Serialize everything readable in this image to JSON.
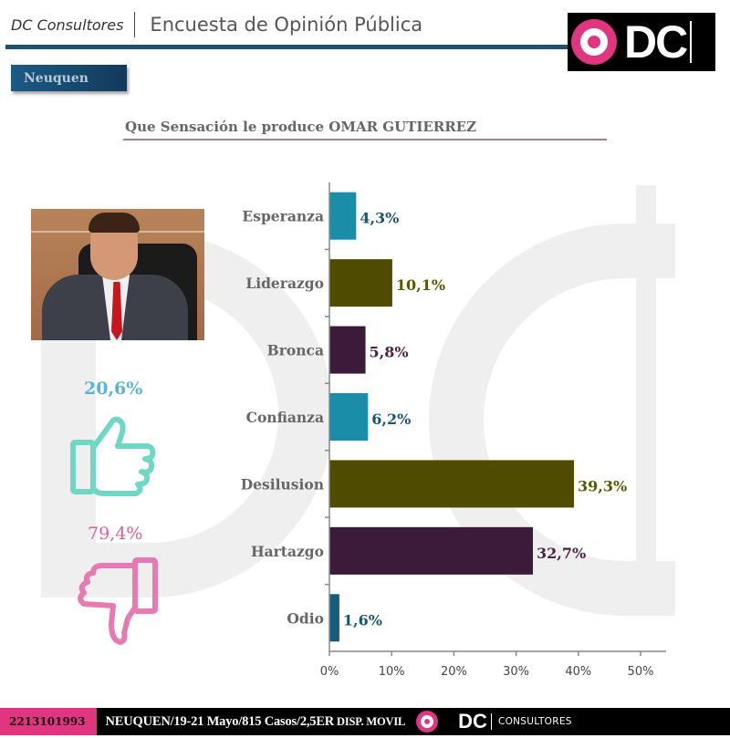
{
  "header": {
    "brand": "DC Consultores",
    "title": "Encuesta de Opinión Pública",
    "logo_text": "DC"
  },
  "region": "Neuquen",
  "question": "Que Sensación le produce OMAR GUTIERREZ",
  "summary": {
    "positive_pct": "20,6%",
    "negative_pct": "79,4%",
    "positive_color": "#56b6d6",
    "negative_color": "#e0608e"
  },
  "chart_data": {
    "type": "bar",
    "orientation": "horizontal",
    "title": "Que Sensación le produce OMAR GUTIERREZ",
    "categories": [
      "Esperanza",
      "Liderazgo",
      "Bronca",
      "Confianza",
      "Desilusion",
      "Hartazgo",
      "Odio"
    ],
    "values": [
      4.3,
      10.1,
      5.8,
      6.2,
      39.3,
      32.7,
      1.6
    ],
    "value_labels": [
      "4,3%",
      "10,1%",
      "5,8%",
      "6,2%",
      "39,3%",
      "32,7%",
      "1,6%"
    ],
    "bar_colors": [
      "#1a8ea8",
      "#4f4b00",
      "#3b1a3a",
      "#1a8ea8",
      "#4f4b00",
      "#3b1a3a",
      "#155c7e"
    ],
    "label_colors": [
      "#1a5470",
      "#5a5700",
      "#4a2345",
      "#1a5470",
      "#5a5700",
      "#4a2345",
      "#1a5470"
    ],
    "xlim": [
      0,
      50
    ],
    "xticks": [
      0,
      10,
      20,
      30,
      40,
      50
    ],
    "xtick_labels": [
      "0%",
      "10%",
      "20%",
      "30%",
      "40%",
      "50%"
    ],
    "xlabel": "",
    "ylabel": "",
    "grid": false,
    "legend": "none"
  },
  "footer": {
    "code": "2213101993",
    "info": "NEUQUEN/19-21 Mayo/815 Casos/2,5ER",
    "info_small": " DISP. MOVIL",
    "logo_text": "DC",
    "logo_sub": "CONSULTORES"
  }
}
